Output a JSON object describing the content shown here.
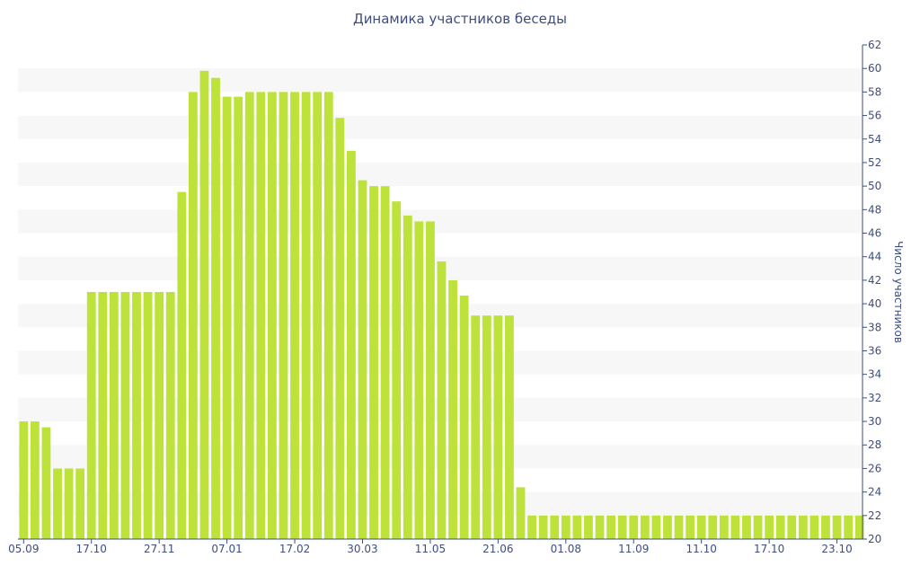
{
  "chart_data": {
    "type": "bar",
    "title": "Динамика участников беседы",
    "xlabel": "",
    "ylabel": "Число участников",
    "ylim": [
      20,
      62
    ],
    "y_ticks": [
      20,
      22,
      24,
      26,
      28,
      30,
      32,
      34,
      36,
      38,
      40,
      42,
      44,
      46,
      48,
      50,
      52,
      54,
      56,
      58,
      60,
      62
    ],
    "x_tick_labels": [
      "05.09",
      "17.10",
      "27.11",
      "07.01",
      "17.02",
      "30.03",
      "11.05",
      "21.06",
      "01.08",
      "11.09",
      "11.10",
      "17.10",
      "23.10"
    ],
    "x_tick_bar_index": [
      0,
      6,
      12,
      18,
      24,
      30,
      36,
      42,
      48,
      54,
      60,
      66,
      72
    ],
    "bar_color": "#bde23a",
    "stripe_color": "#f7f7f7",
    "axis_color": "#3e4e7e",
    "values": [
      30,
      30,
      29.5,
      26,
      26,
      26,
      41,
      41,
      41,
      41,
      41,
      41,
      41,
      41,
      49.5,
      58,
      59.8,
      59.2,
      57.6,
      57.6,
      58,
      58,
      58,
      58,
      58,
      58,
      58,
      58,
      55.8,
      53,
      50.5,
      50,
      50,
      48.7,
      47.5,
      47,
      47,
      43.6,
      42,
      40.7,
      39,
      39,
      39,
      39,
      24.4,
      22,
      22,
      22,
      22,
      22,
      22,
      22,
      22,
      22,
      22,
      22,
      22,
      22,
      22,
      22,
      22,
      22,
      22,
      22,
      22,
      22,
      22,
      22,
      22,
      22,
      22,
      22,
      22,
      22,
      22
    ]
  }
}
